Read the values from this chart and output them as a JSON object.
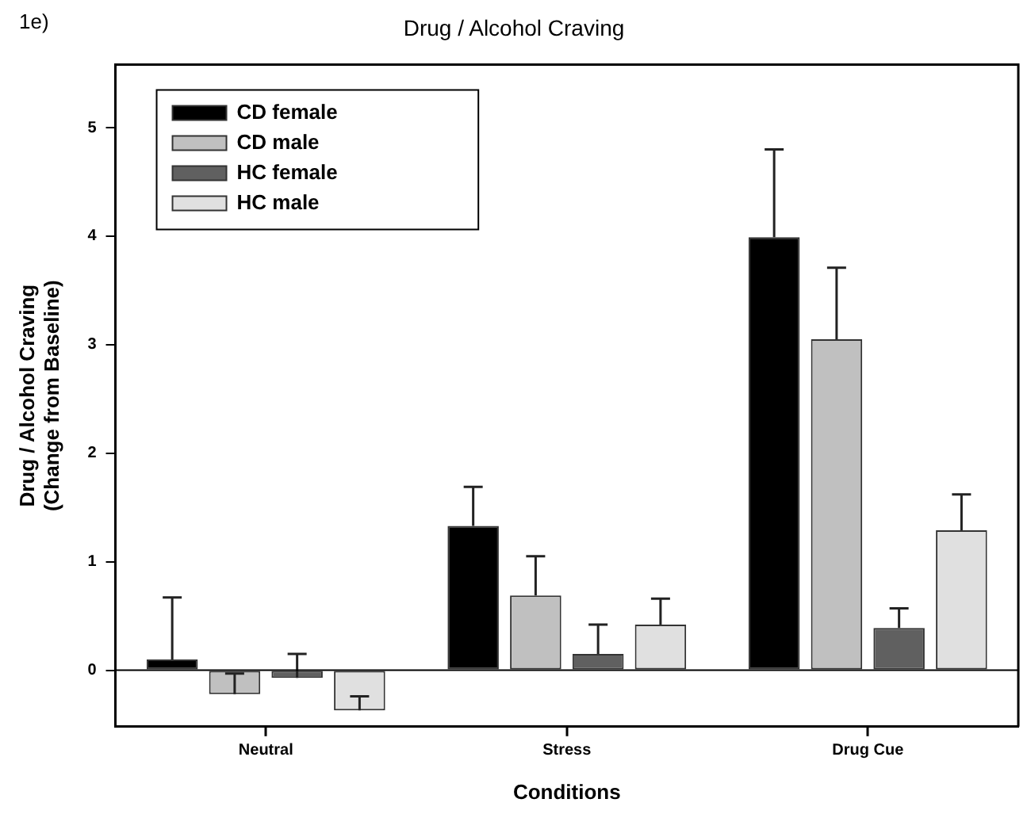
{
  "chart_data": {
    "type": "bar",
    "title": "Drug / Alcohol Craving",
    "xlabel": "Conditions",
    "ylabel": "Drug / Alcohol Craving\n(Change from Baseline)",
    "annotations": [
      "1e)"
    ],
    "categories": [
      "Neutral",
      "Stress",
      "Drug Cue"
    ],
    "series": [
      {
        "name": "CD female",
        "color": "#000000",
        "values": [
          0.1,
          1.33,
          3.99
        ],
        "errors": [
          [
            0.1,
            0.67
          ],
          [
            1.33,
            1.69
          ],
          [
            3.99,
            4.8
          ]
        ]
      },
      {
        "name": "CD male",
        "color": "#c0c0c0",
        "values": [
          -0.22,
          0.69,
          3.05
        ],
        "errors": [
          [
            -0.22,
            -0.03
          ],
          [
            0.69,
            1.05
          ],
          [
            3.05,
            3.71
          ]
        ]
      },
      {
        "name": "HC female",
        "color": "#606060",
        "values": [
          -0.07,
          0.15,
          0.39
        ],
        "errors": [
          [
            -0.07,
            0.15
          ],
          [
            0.15,
            0.42
          ],
          [
            0.39,
            0.57
          ]
        ]
      },
      {
        "name": "HC male",
        "color": "#e0e0e0",
        "values": [
          -0.37,
          0.42,
          1.29
        ],
        "errors": [
          [
            -0.37,
            -0.24
          ],
          [
            0.42,
            0.66
          ],
          [
            1.29,
            1.62
          ]
        ]
      }
    ],
    "ylim": [
      -0.52,
      5.58
    ],
    "yticks": [
      0,
      1,
      2,
      3,
      4,
      5
    ],
    "ref_lines": [
      {
        "axis": "y",
        "value": 0
      }
    ],
    "legend": "top left"
  }
}
